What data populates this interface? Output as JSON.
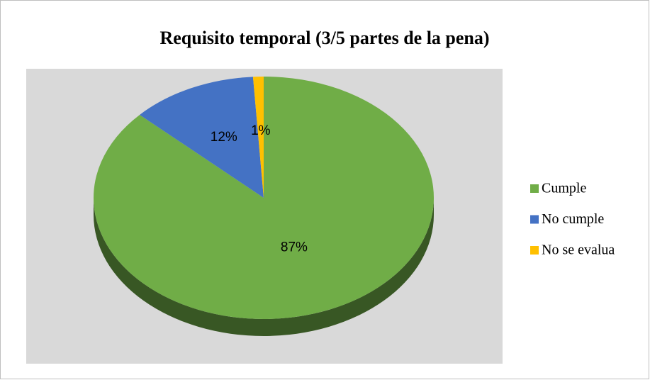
{
  "chart_data": {
    "type": "pie",
    "title": "Requisito temporal (3/5 partes de la pena)",
    "categories": [
      "Cumple",
      "No cumple",
      "No se evalua"
    ],
    "values": [
      87,
      12,
      1
    ],
    "value_labels": [
      "87%",
      "12%",
      "1%"
    ],
    "colors": [
      "#70ad47",
      "#4472c4",
      "#ffc000"
    ],
    "legend": "right"
  }
}
